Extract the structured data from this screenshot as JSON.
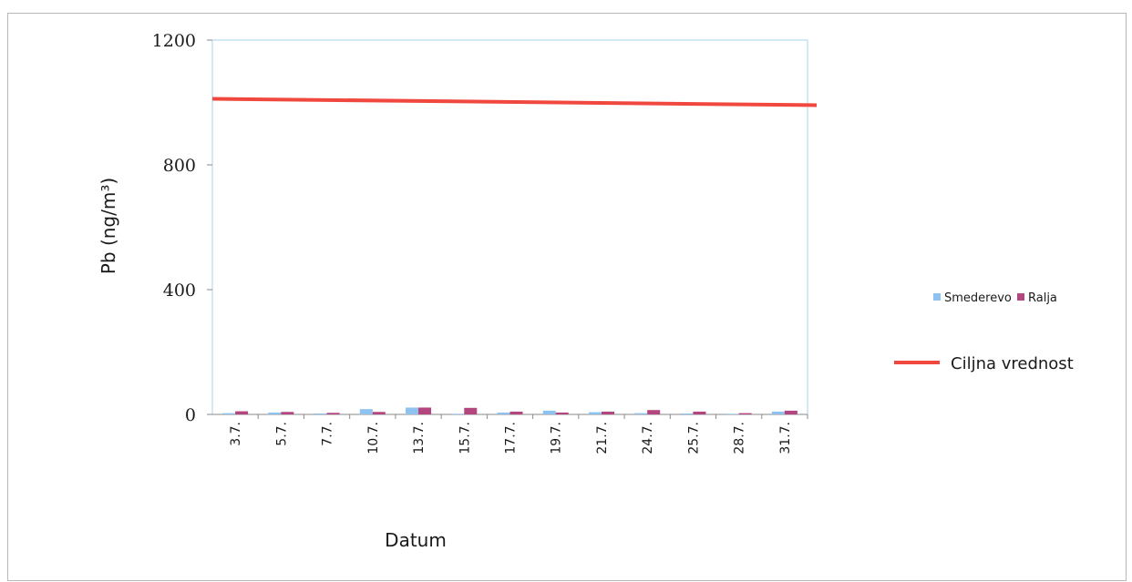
{
  "chart_data": {
    "type": "bar",
    "title": "",
    "xlabel": "Datum",
    "ylabel": "Pb (ng/m³)",
    "ylim": [
      0,
      1200
    ],
    "yticks": [
      0,
      400,
      800,
      1200
    ],
    "categories": [
      "3.7.",
      "5.7.",
      "7.7.",
      "10.7.",
      "13.7.",
      "15.7.",
      "17.7.",
      "19.7.",
      "21.7.",
      "24.7.",
      "25.7.",
      "28.7.",
      "31.7."
    ],
    "series": [
      {
        "name": "Smederevo",
        "color": "#8fc3ef",
        "values": [
          4,
          6,
          3,
          17,
          22,
          2,
          6,
          12,
          7,
          4,
          3,
          2,
          9
        ]
      },
      {
        "name": "Ralja",
        "color": "#b3467f",
        "values": [
          10,
          8,
          5,
          8,
          22,
          21,
          9,
          6,
          9,
          14,
          9,
          4,
          12
        ]
      }
    ],
    "reference_line": {
      "name": "Ciljna vrednost",
      "value": 1000,
      "color": "#f0483e"
    },
    "grid": false,
    "legend_position": "right"
  }
}
